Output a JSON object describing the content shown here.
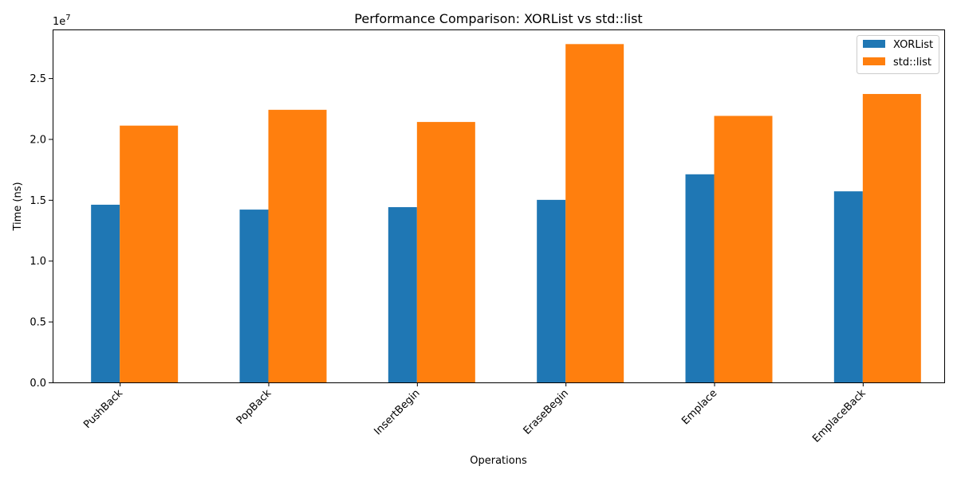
{
  "chart_data": {
    "type": "bar",
    "title": "Performance Comparison: XORList vs std::list",
    "xlabel": "Operations",
    "ylabel": "Time (ns)",
    "y_multiplier_label": "1e7",
    "categories": [
      "PushBack",
      "PopBack",
      "InsertBegin",
      "EraseBegin",
      "Emplace",
      "EmplaceBack"
    ],
    "series": [
      {
        "name": "XORList",
        "color": "#1f77b4",
        "values": [
          14600000,
          14200000,
          14400000,
          15000000,
          17100000,
          15700000
        ]
      },
      {
        "name": "std::list",
        "color": "#ff7f0e",
        "values": [
          21100000,
          22400000,
          21400000,
          27800000,
          21900000,
          23700000
        ]
      }
    ],
    "ylim": [
      0,
      29000000
    ],
    "yticks": [
      0,
      5000000,
      10000000,
      15000000,
      20000000,
      25000000
    ],
    "ytick_labels": [
      "0.0",
      "0.5",
      "1.0",
      "1.5",
      "2.0",
      "2.5"
    ],
    "legend_position": "top-right",
    "grid": false
  }
}
